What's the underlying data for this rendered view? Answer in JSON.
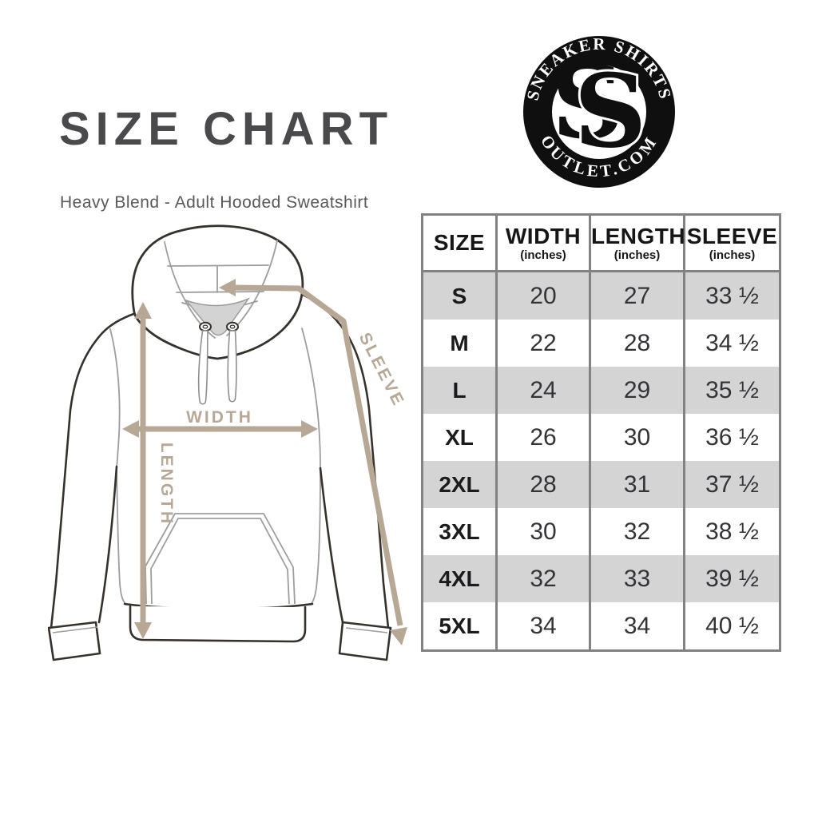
{
  "page": {
    "title": "SIZE CHART",
    "subtitle": "Heavy Blend - Adult Hooded Sweatshirt"
  },
  "logo": {
    "arc_top": "SNEAKER SHIRTS",
    "arc_bottom": "OUTLET.COM",
    "monogram_letters": [
      "S",
      "S"
    ]
  },
  "diagram": {
    "label_width": "WIDTH",
    "label_length": "LENGTH",
    "label_sleeve": "SLEEVE"
  },
  "size_table": {
    "columns": [
      {
        "label": "SIZE",
        "sub": ""
      },
      {
        "label": "WIDTH",
        "sub": "(inches)"
      },
      {
        "label": "LENGTH",
        "sub": "(inches)"
      },
      {
        "label": "SLEEVE",
        "sub": "(inches)"
      }
    ],
    "rows": [
      {
        "size": "S",
        "width": "20",
        "length": "27",
        "sleeve": "33 ½"
      },
      {
        "size": "M",
        "width": "22",
        "length": "28",
        "sleeve": "34 ½"
      },
      {
        "size": "L",
        "width": "24",
        "length": "29",
        "sleeve": "35 ½"
      },
      {
        "size": "XL",
        "width": "26",
        "length": "30",
        "sleeve": "36 ½"
      },
      {
        "size": "2XL",
        "width": "28",
        "length": "31",
        "sleeve": "37 ½"
      },
      {
        "size": "3XL",
        "width": "30",
        "length": "32",
        "sleeve": "38 ½"
      },
      {
        "size": "4XL",
        "width": "32",
        "length": "33",
        "sleeve": "39 ½"
      },
      {
        "size": "5XL",
        "width": "34",
        "length": "34",
        "sleeve": "40 ½"
      }
    ]
  },
  "colors": {
    "accent_tan": "#b7a896",
    "row_stripe_gray": "#d4d4d4",
    "table_border_gray": "#828282",
    "title_gray": "#4a4a4c",
    "outline_dark": "#35322e",
    "logo_black": "#0f0f0f"
  }
}
